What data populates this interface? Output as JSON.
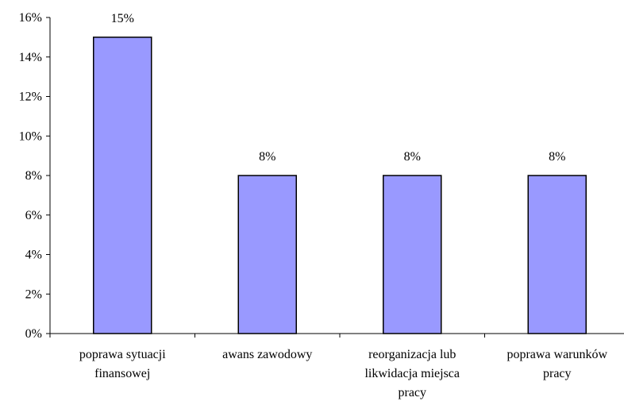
{
  "chart_data": {
    "type": "bar",
    "categories": [
      [
        "poprawa sytuacji",
        "finansowej"
      ],
      [
        "awans zawodowy"
      ],
      [
        "reorganizacja lub",
        "likwidacja miejsca",
        "pracy"
      ],
      [
        "poprawa warunków",
        "pracy"
      ]
    ],
    "values": [
      15,
      8,
      8,
      8
    ],
    "data_labels": [
      "15%",
      "8%",
      "8%",
      "8%"
    ],
    "ylim": [
      0,
      16
    ],
    "yticks": [
      0,
      2,
      4,
      6,
      8,
      10,
      12,
      14,
      16
    ],
    "ytick_labels": [
      "0%",
      "2%",
      "4%",
      "6%",
      "8%",
      "10%",
      "12%",
      "14%",
      "16%"
    ],
    "title": "",
    "xlabel": "",
    "ylabel": "",
    "grid": false,
    "legend": "none",
    "colors": {
      "bar_fill": "#9999ff",
      "bar_stroke": "#000000",
      "axis": "#000000"
    }
  }
}
